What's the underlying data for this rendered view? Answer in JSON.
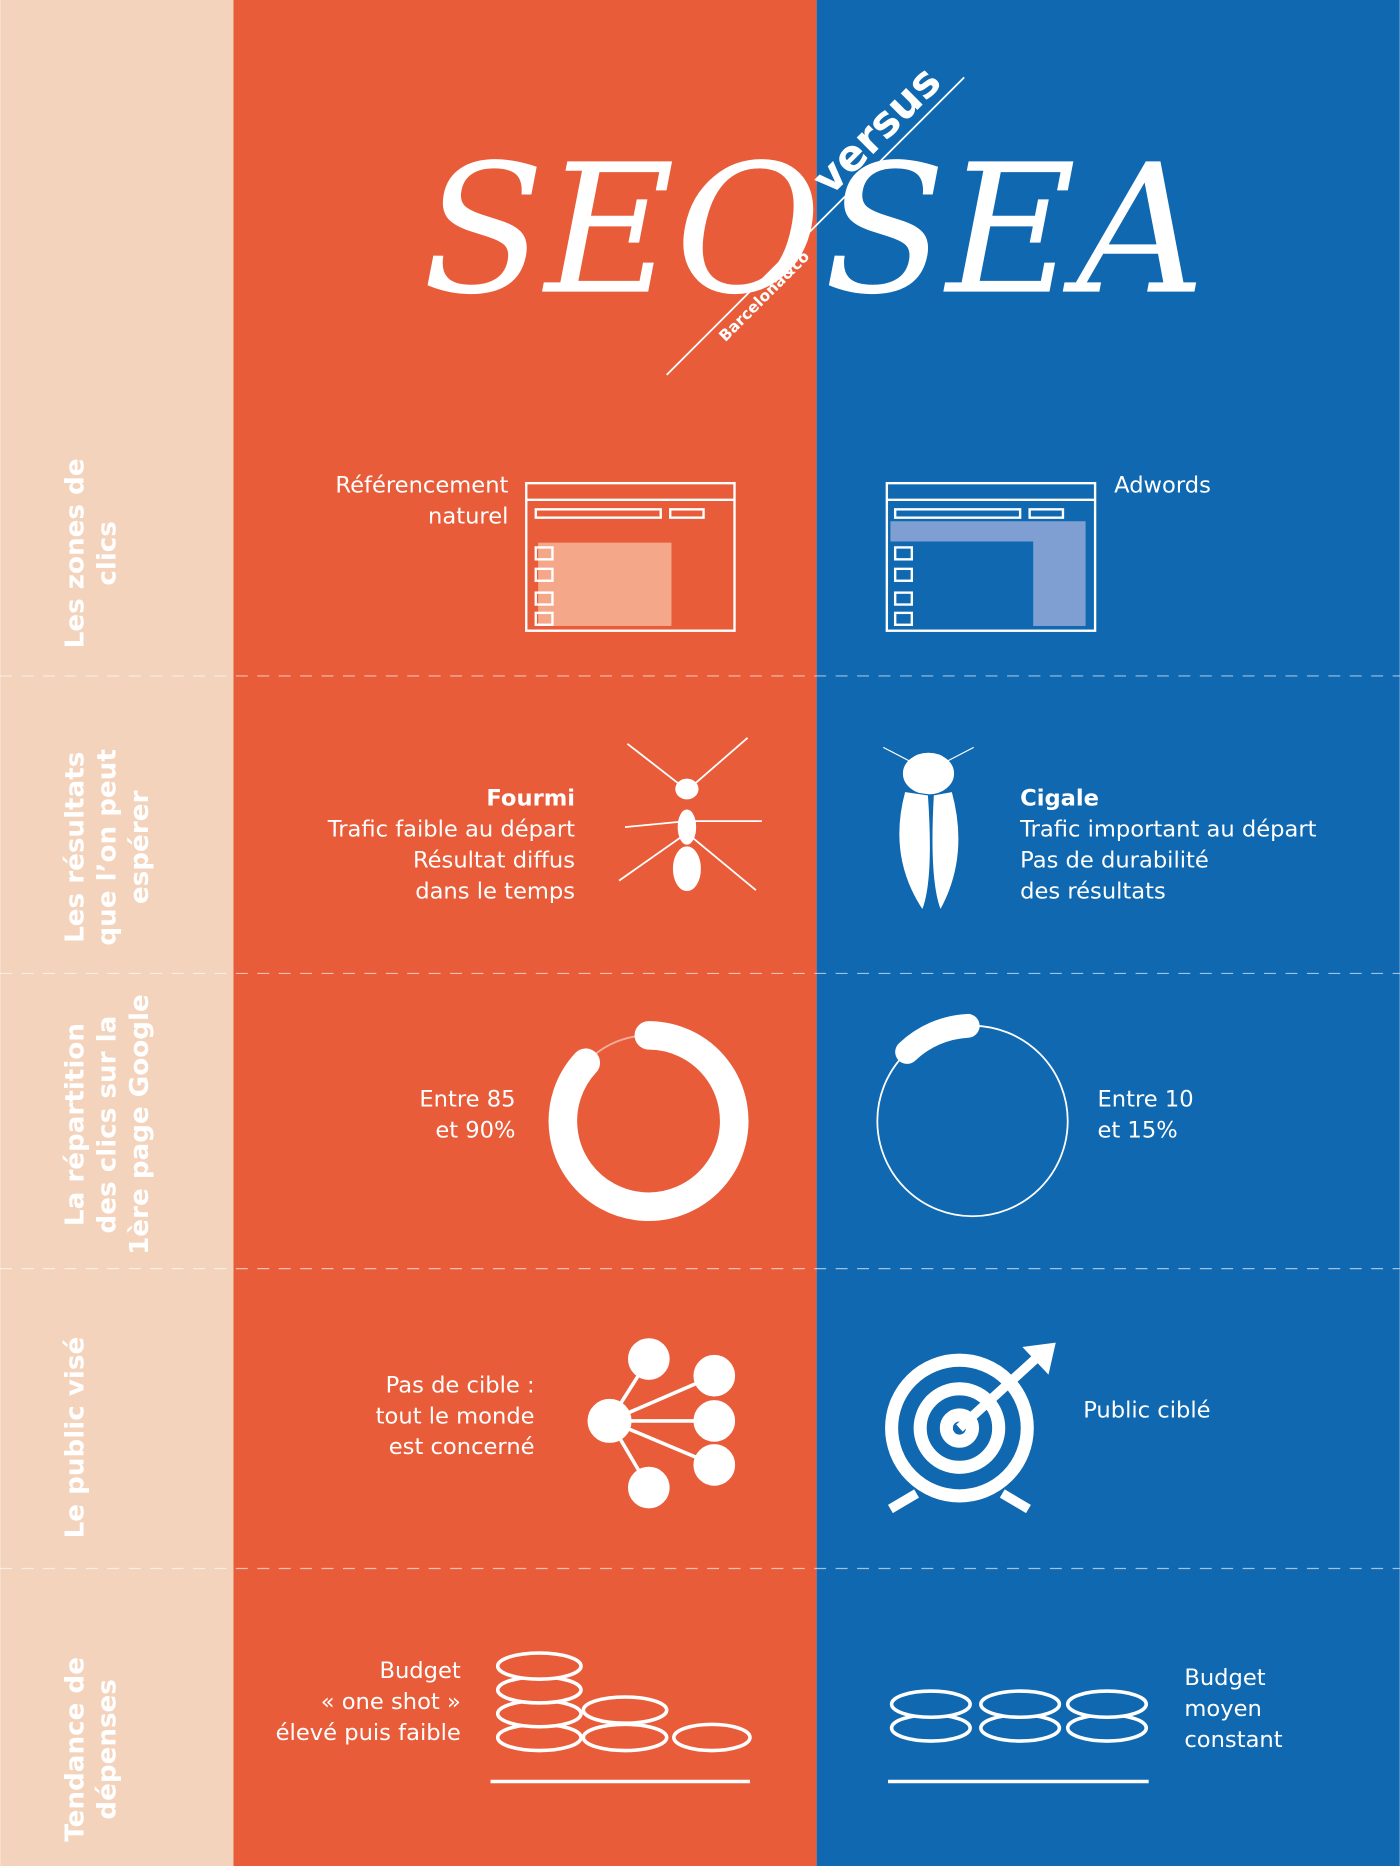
{
  "header": {
    "title_left": "SEO",
    "title_right": "SEA",
    "versus": "versus",
    "brand": "Barcelona&co"
  },
  "rows": [
    {
      "label": [
        "Les zones de",
        "clics"
      ],
      "seo": {
        "lines": [
          "Référencement",
          "naturel"
        ]
      },
      "sea": {
        "lines": [
          "Adwords"
        ]
      }
    },
    {
      "label": [
        "Les résultats",
        "que l’on peut",
        "espérer"
      ],
      "seo": {
        "heading": "Fourmi",
        "lines": [
          "Trafic faible au départ",
          "Résultat diffus",
          "dans le temps"
        ]
      },
      "sea": {
        "heading": "Cigale",
        "lines": [
          "Trafic important au départ",
          "Pas de durabilité",
          "des résultats"
        ]
      }
    },
    {
      "label": [
        "La répartition",
        "des clics sur la",
        "1ère page Google"
      ],
      "seo": {
        "lines": [
          "Entre 85",
          "et 90%"
        ]
      },
      "sea": {
        "lines": [
          "Entre 10",
          "et 15%"
        ]
      }
    },
    {
      "label": [
        "Le public visé"
      ],
      "seo": {
        "lines": [
          "Pas de cible :",
          "tout le monde",
          "est concerné"
        ]
      },
      "sea": {
        "lines": [
          "Public ciblé"
        ]
      }
    },
    {
      "label": [
        "Tendance de",
        "dépenses"
      ],
      "seo": {
        "lines": [
          "Budget",
          "« one shot »",
          "élevé puis faible"
        ]
      },
      "sea": {
        "lines": [
          "Budget",
          "moyen",
          "constant"
        ]
      }
    }
  ]
}
